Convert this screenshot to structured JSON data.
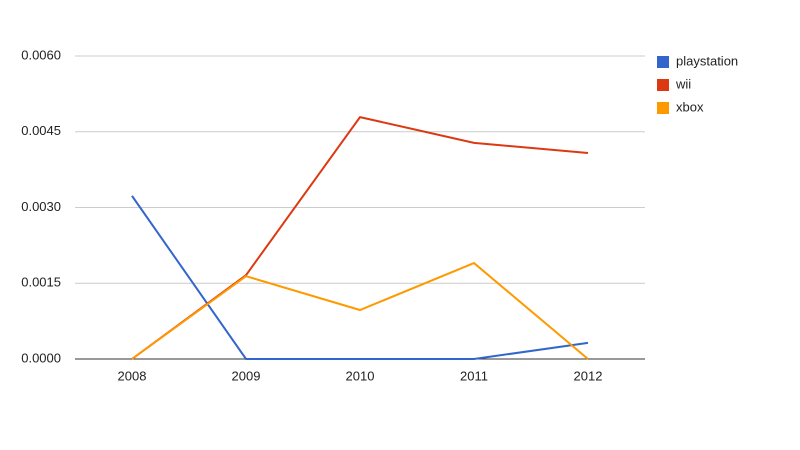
{
  "chart_data": {
    "type": "line",
    "categories": [
      "2008",
      "2009",
      "2010",
      "2011",
      "2012"
    ],
    "series": [
      {
        "name": "playstation",
        "color": "#3366cc",
        "values": [
          0.00323,
          0,
          0,
          0,
          0.00032
        ]
      },
      {
        "name": "wii",
        "color": "#dc3912",
        "values": [
          0,
          0.00166,
          0.00479,
          0.00428,
          0.00408
        ]
      },
      {
        "name": "xbox",
        "color": "#ff9900",
        "values": [
          0,
          0.00164,
          0.00097,
          0.0019,
          0
        ]
      }
    ],
    "ylim": [
      0,
      0.006
    ],
    "yticks": [
      {
        "value": 0,
        "label": "0.0000"
      },
      {
        "value": 0.0015,
        "label": "0.0015"
      },
      {
        "value": 0.003,
        "label": "0.0030"
      },
      {
        "value": 0.0045,
        "label": "0.0045"
      },
      {
        "value": 0.006,
        "label": "0.0060"
      }
    ],
    "grid": true,
    "legend": "right"
  }
}
